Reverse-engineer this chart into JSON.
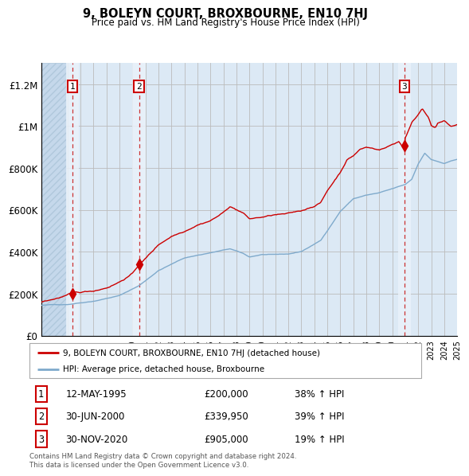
{
  "title": "9, BOLEYN COURT, BROXBOURNE, EN10 7HJ",
  "subtitle": "Price paid vs. HM Land Registry's House Price Index (HPI)",
  "property_label": "9, BOLEYN COURT, BROXBOURNE, EN10 7HJ (detached house)",
  "hpi_label": "HPI: Average price, detached house, Broxbourne",
  "sales": [
    {
      "date": "12-MAY-1995",
      "price": 200000,
      "pct": "38%",
      "label": "1"
    },
    {
      "date": "30-JUN-2000",
      "price": 339950,
      "pct": "39%",
      "label": "2"
    },
    {
      "date": "30-NOV-2020",
      "price": 905000,
      "pct": "19%",
      "label": "3"
    }
  ],
  "sale_dates_year": [
    1995.36,
    2000.5,
    2020.92
  ],
  "copyright": "Contains HM Land Registry data © Crown copyright and database right 2024.\nThis data is licensed under the Open Government Licence v3.0.",
  "ylim": [
    0,
    1300000
  ],
  "yticks": [
    0,
    200000,
    400000,
    600000,
    800000,
    1000000,
    1200000
  ],
  "ytick_labels": [
    "£0",
    "£200K",
    "£400K",
    "£600K",
    "£800K",
    "£1M",
    "£1.2M"
  ],
  "start_year": 1993,
  "end_year": 2025,
  "property_color": "#cc0000",
  "hpi_color": "#7faacc",
  "dashed_color": "#cc3333",
  "bg_color": "#dce9f5",
  "hatch_color": "#c5d8eb",
  "grid_color": "#bbbbbb",
  "white_band_color": "#eaf2fa",
  "hpi_anchors": {
    "1993.0": 145000,
    "1995.0": 150000,
    "1997.0": 168000,
    "1999.0": 195000,
    "2000.5": 242000,
    "2002.0": 315000,
    "2004.0": 375000,
    "2005.0": 388000,
    "2007.5": 418000,
    "2008.5": 395000,
    "2009.0": 378000,
    "2010.0": 390000,
    "2011.0": 388000,
    "2012.0": 390000,
    "2013.0": 402000,
    "2014.5": 455000,
    "2016.0": 595000,
    "2017.0": 655000,
    "2018.0": 672000,
    "2019.0": 682000,
    "2020.0": 700000,
    "2020.5": 710000,
    "2021.0": 720000,
    "2021.5": 745000,
    "2022.0": 820000,
    "2022.5": 870000,
    "2023.0": 840000,
    "2024.0": 820000,
    "2025.0": 840000
  },
  "prop_anchors": {
    "1993.0": 160000,
    "1994.0": 175000,
    "1995.36": 200000,
    "1996.0": 202000,
    "1997.0": 210000,
    "1998.0": 228000,
    "1999.0": 258000,
    "2000.0": 298000,
    "2000.50": 339950,
    "2001.0": 370000,
    "2002.0": 435000,
    "2003.0": 478000,
    "2004.0": 505000,
    "2005.0": 540000,
    "2006.0": 562000,
    "2007.0": 600000,
    "2007.5": 630000,
    "2008.0": 615000,
    "2008.5": 600000,
    "2009.0": 570000,
    "2010.0": 578000,
    "2011.0": 588000,
    "2012.0": 590000,
    "2013.0": 602000,
    "2014.0": 628000,
    "2014.5": 645000,
    "2015.0": 700000,
    "2016.0": 790000,
    "2016.5": 850000,
    "2017.0": 870000,
    "2017.5": 900000,
    "2018.0": 910000,
    "2018.5": 905000,
    "2019.0": 900000,
    "2019.5": 910000,
    "2020.0": 925000,
    "2020.5": 940000,
    "2020.92": 905000,
    "2021.0": 960000,
    "2021.5": 1030000,
    "2022.0": 1070000,
    "2022.3": 1100000,
    "2022.5": 1085000,
    "2022.8": 1060000,
    "2023.0": 1020000,
    "2023.3": 1010000,
    "2023.5": 1030000,
    "2024.0": 1040000,
    "2024.5": 1010000,
    "2025.0": 1020000
  }
}
